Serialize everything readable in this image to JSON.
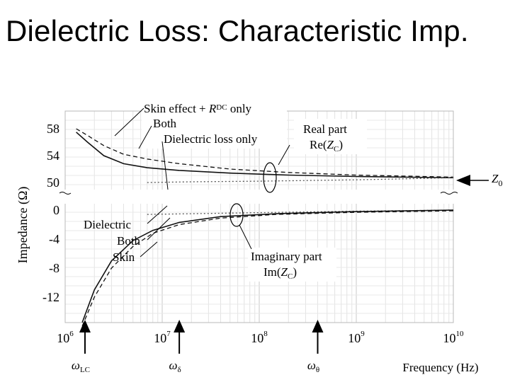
{
  "slide": {
    "title": "Dielectric Loss: Characteristic Imp."
  },
  "chart_data": {
    "type": "line",
    "xlabel": "Frequency (Hz)",
    "ylabel": "Impedance (Ω)",
    "x_scale": "log",
    "xlim": [
      1000000,
      10000000000
    ],
    "x_ticks": [
      {
        "value": 1000000,
        "base": "10",
        "exp": "6"
      },
      {
        "value": 10000000,
        "base": "10",
        "exp": "7"
      },
      {
        "value": 100000000,
        "base": "10",
        "exp": "8"
      },
      {
        "value": 1000000000,
        "base": "10",
        "exp": "9"
      },
      {
        "value": 10000000000,
        "base": "10",
        "exp": "10"
      }
    ],
    "y_ticks_upper": [
      "58",
      "54",
      "50"
    ],
    "y_ticks_lower": [
      "0",
      "-4",
      "-8",
      "-12"
    ],
    "grid": true,
    "frequency_markers": [
      {
        "label": "ω",
        "sub": "LC",
        "x": 1600000
      },
      {
        "label": "ω",
        "sub": "δ",
        "x": 15000000
      },
      {
        "label": "ω",
        "sub": "θ",
        "x": 400000000
      }
    ],
    "z0_label": {
      "main": "Z",
      "sub": "0"
    },
    "series": [
      {
        "name": "Skin effect + R_DC only",
        "part": "real",
        "style": "dashed",
        "x": [
          1300000,
          1700000,
          2500000,
          4000000,
          7000000,
          15000000,
          50000000,
          200000000,
          1000000000,
          10000000000
        ],
        "y": [
          58.0,
          57.0,
          55.5,
          54.2,
          53.5,
          52.8,
          52.0,
          51.5,
          51.1,
          50.8
        ]
      },
      {
        "name": "Both",
        "part": "real",
        "style": "solid",
        "x": [
          1300000,
          1700000,
          2500000,
          4000000,
          7000000,
          15000000,
          50000000,
          200000000,
          1000000000,
          10000000000
        ],
        "y": [
          57.5,
          56.0,
          54.0,
          52.8,
          52.2,
          51.8,
          51.4,
          51.1,
          50.9,
          50.7
        ]
      },
      {
        "name": "Dielectric loss only",
        "part": "real",
        "style": "dotted",
        "x": [
          7000000,
          20000000,
          100000000,
          1000000000,
          10000000000
        ],
        "y": [
          50.0,
          50.1,
          50.2,
          50.4,
          50.7
        ]
      },
      {
        "name": "Dielectric",
        "part": "imag",
        "style": "dotted",
        "x": [
          7000000,
          20000000,
          100000000,
          1000000000,
          10000000000
        ],
        "y": [
          -0.6,
          -0.5,
          -0.35,
          -0.15,
          0.0
        ]
      },
      {
        "name": "Both",
        "part": "imag",
        "style": "solid",
        "x": [
          1500000,
          2000000,
          3000000,
          5000000,
          8000000,
          15000000,
          40000000,
          150000000,
          1000000000,
          10000000000
        ],
        "y": [
          -15.5,
          -11.0,
          -7.0,
          -4.2,
          -2.8,
          -1.7,
          -0.9,
          -0.5,
          -0.2,
          0.0
        ]
      },
      {
        "name": "Skin",
        "part": "imag",
        "style": "dashed",
        "x": [
          1500000,
          2000000,
          3000000,
          5000000,
          8000000,
          15000000,
          40000000,
          150000000,
          1000000000,
          10000000000
        ],
        "y": [
          -16.0,
          -12.0,
          -8.0,
          -5.0,
          -3.2,
          -2.0,
          -1.1,
          -0.6,
          -0.3,
          -0.1
        ]
      }
    ],
    "annotations": {
      "skin_effect": {
        "text": "Skin effect + ",
        "sym": "R",
        "sub": "DC",
        "rest": " only"
      },
      "both_upper": "Both",
      "dielectric_loss_only": "Dielectric loss only",
      "real_part_title": "Real part",
      "real_part_formula": {
        "pre": "Re(",
        "sym": "Z",
        "sub": "C",
        "post": ")"
      },
      "dielectric": "Dielectric",
      "both_lower": "Both",
      "skin": "Skin",
      "imag_part_title": "Imaginary part",
      "imag_part_formula": {
        "pre": "Im(",
        "sym": "Z",
        "sub": "C",
        "post": ")"
      }
    }
  }
}
